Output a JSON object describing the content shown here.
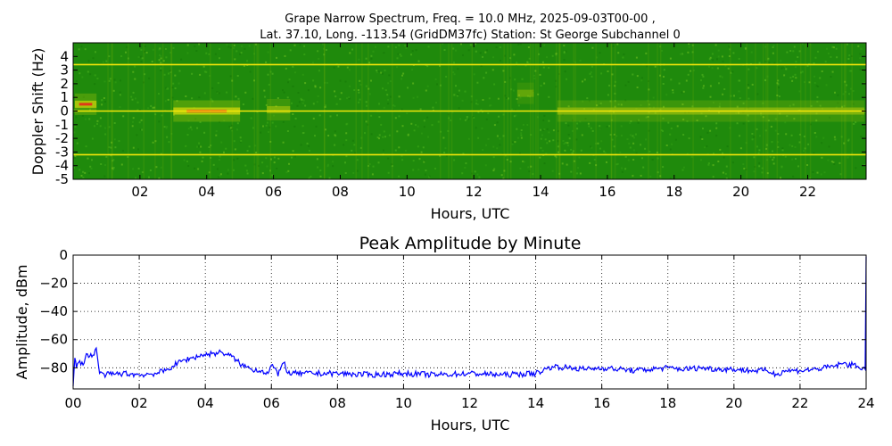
{
  "figure": {
    "title_line1": "Grape Narrow Spectrum, Freq. = 10.0 MHz, 2025-09-03T00-00 ,",
    "title_line2": "Lat.  37.10, Long. -113.54 (GridDM37fc) Station: St George Subchannel 0"
  },
  "chart_data": [
    {
      "type": "heatmap",
      "title": "",
      "xlabel": "Hours, UTC",
      "ylabel": "Doppler Shift (Hz)",
      "xlim": [
        0,
        23.75
      ],
      "ylim": [
        -5,
        5
      ],
      "x_ticks": [
        2,
        4,
        6,
        8,
        10,
        12,
        14,
        16,
        18,
        20,
        22
      ],
      "x_tick_labels": [
        "02",
        "04",
        "06",
        "08",
        "10",
        "12",
        "14",
        "16",
        "18",
        "20",
        "22"
      ],
      "y_ticks": [
        4,
        3,
        2,
        1,
        0,
        -1,
        -2,
        -3,
        -4,
        -5
      ],
      "y_tick_labels": [
        "4",
        "3",
        "2",
        "1",
        "0",
        "-1",
        "-2",
        "-3",
        "-4",
        "-5"
      ],
      "colors": {
        "background": "#1f8a0c",
        "mid": "#a8c80a",
        "high": "#f5e60a",
        "peak": "#e8291a"
      },
      "horizontal_lines_hz": [
        3.4,
        0,
        -3.2
      ],
      "carrier_regions": [
        {
          "start": 0.05,
          "end": 0.7,
          "doppler": 0.5,
          "intensity": 0.9
        },
        {
          "start": 3.0,
          "end": 5.0,
          "doppler": 0,
          "intensity": 1.0
        },
        {
          "start": 5.8,
          "end": 6.5,
          "doppler": 0.1,
          "intensity": 0.6
        },
        {
          "start": 13.3,
          "end": 13.8,
          "doppler": 1.3,
          "intensity": 0.4
        },
        {
          "start": 14.5,
          "end": 23.7,
          "doppler": 0,
          "intensity": 0.6
        }
      ],
      "grid": false
    },
    {
      "type": "line",
      "title": "Peak Amplitude by Minute",
      "xlabel": "Hours, UTC",
      "ylabel": "Amplitude, dBm",
      "xlim": [
        0,
        24
      ],
      "ylim": [
        -95,
        0
      ],
      "x_ticks": [
        0,
        2,
        4,
        6,
        8,
        10,
        12,
        14,
        16,
        18,
        20,
        22,
        24
      ],
      "x_tick_labels": [
        "00",
        "02",
        "04",
        "06",
        "08",
        "10",
        "12",
        "14",
        "16",
        "18",
        "20",
        "22",
        "24"
      ],
      "y_ticks": [
        0,
        -20,
        -40,
        -60,
        -80
      ],
      "y_tick_labels": [
        "0",
        "−20",
        "−40",
        "−60",
        "−80"
      ],
      "grid": true,
      "series": [
        {
          "color": "#0000ff",
          "x": [
            0,
            0.05,
            0.1,
            0.2,
            0.3,
            0.4,
            0.5,
            0.6,
            0.7,
            0.8,
            1.0,
            1.5,
            2.0,
            2.5,
            2.8,
            3.0,
            3.3,
            3.6,
            3.9,
            4.2,
            4.5,
            4.8,
            5.1,
            5.4,
            5.7,
            5.9,
            6.0,
            6.1,
            6.2,
            6.3,
            6.4,
            6.5,
            7.0,
            8.0,
            9.0,
            10.0,
            11.0,
            12.0,
            13.0,
            14.0,
            14.5,
            15.0,
            15.5,
            16.0,
            16.5,
            17.0,
            17.5,
            18.0,
            18.5,
            19.0,
            19.5,
            20.0,
            20.5,
            21.0,
            21.3,
            21.5,
            22.0,
            22.5,
            23.0,
            23.3,
            23.6,
            23.9,
            23.97,
            24.0
          ],
          "y": [
            -93,
            -73,
            -80,
            -75,
            -78,
            -70,
            -72,
            -71,
            -66,
            -84,
            -85,
            -84,
            -85,
            -84,
            -82,
            -79,
            -75,
            -73,
            -71,
            -70,
            -69,
            -72,
            -78,
            -81,
            -82,
            -84,
            -78,
            -80,
            -86,
            -79,
            -76,
            -84,
            -84,
            -84,
            -85,
            -84,
            -85,
            -84,
            -85,
            -84,
            -79,
            -80,
            -81,
            -80,
            -81,
            -82,
            -81,
            -80,
            -81,
            -80,
            -81,
            -81,
            -82,
            -82,
            -85,
            -82,
            -82,
            -81,
            -79,
            -77,
            -78,
            -80,
            -81,
            -1
          ]
        }
      ]
    }
  ]
}
